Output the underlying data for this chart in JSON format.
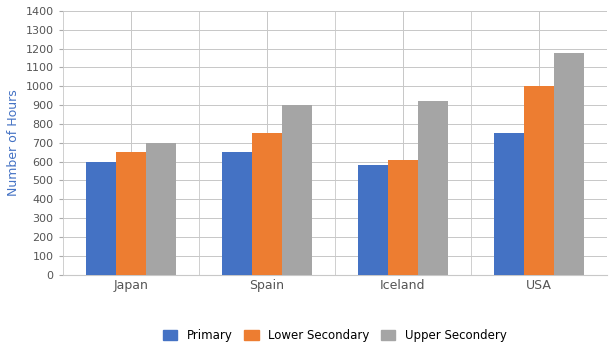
{
  "countries": [
    "Japan",
    "Spain",
    "Iceland",
    "USA"
  ],
  "series": {
    "Primary": [
      600,
      650,
      580,
      750
    ],
    "Lower Secondary": [
      650,
      750,
      610,
      1000
    ],
    "Upper Secondery": [
      700,
      900,
      920,
      1175
    ]
  },
  "colors": {
    "Primary": "#4472C4",
    "Lower Secondary": "#ED7D31",
    "Upper Secondery": "#A5A5A5"
  },
  "ylabel": "Number of Hours",
  "ylim": [
    0,
    1400
  ],
  "yticks": [
    0,
    100,
    200,
    300,
    400,
    500,
    600,
    700,
    800,
    900,
    1000,
    1100,
    1200,
    1300,
    1400
  ],
  "bar_width": 0.22,
  "background_color": "#ffffff",
  "grid_color": "#c8c8c8",
  "legend_labels": [
    "Primary",
    "Lower Secondary",
    "Upper Secondery"
  ],
  "ylabel_color": "#4472C4"
}
